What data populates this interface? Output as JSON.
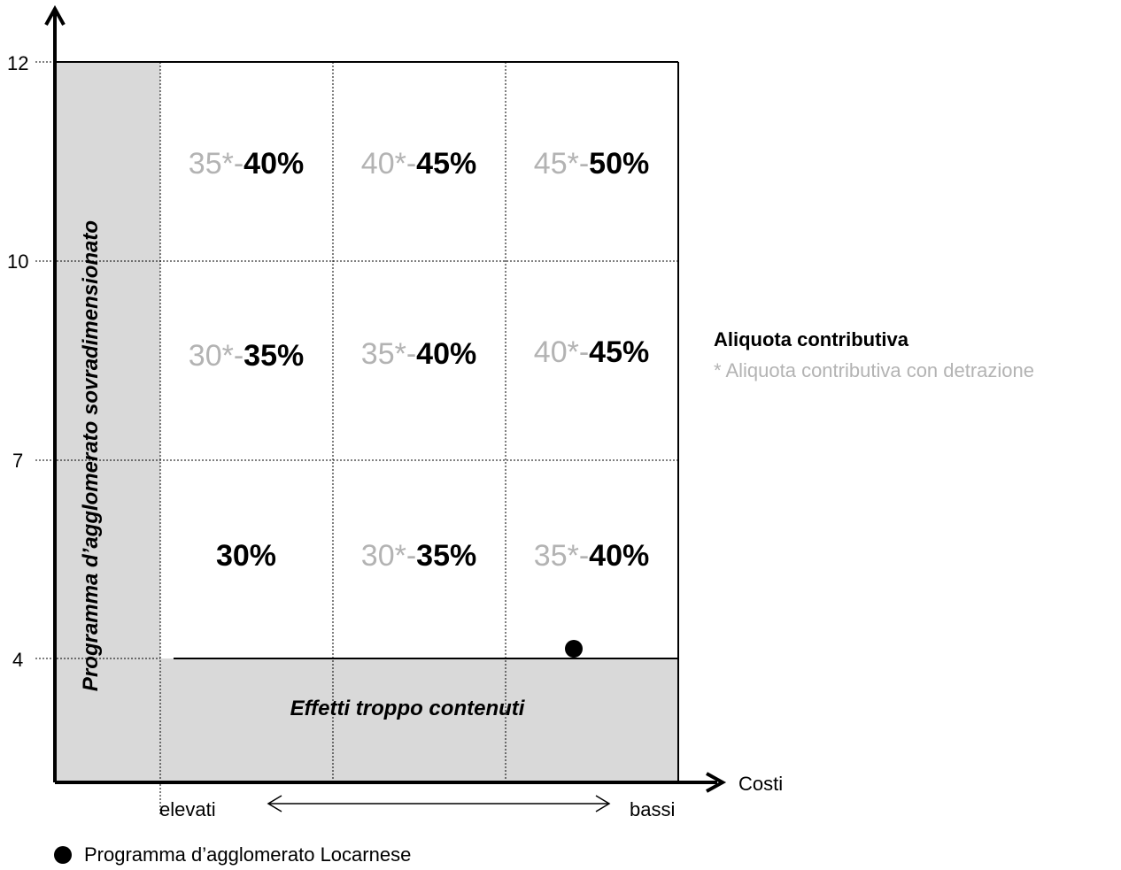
{
  "y_axis": {
    "ticks": [
      "12",
      "10",
      "7",
      "4"
    ]
  },
  "x_axis": {
    "label": "Costi",
    "left_word": "elevati",
    "right_word": "bassi"
  },
  "zones": {
    "vertical": "Programma d’agglomerato sovradimensionato",
    "horizontal": "Effetti troppo contenuti"
  },
  "cells": [
    [
      {
        "light": "35*-",
        "bold": "40%"
      },
      {
        "light": "40*-",
        "bold": "45%"
      },
      {
        "light": "45*-",
        "bold": "50%"
      }
    ],
    [
      {
        "light": "30*-",
        "bold": "35%"
      },
      {
        "light": "35*-",
        "bold": "40%"
      },
      {
        "light": "40*-",
        "bold": "45%"
      }
    ],
    [
      {
        "light": "",
        "bold": "30%"
      },
      {
        "light": "30*-",
        "bold": "35%"
      },
      {
        "light": "35*-",
        "bold": "40%"
      }
    ]
  ],
  "legend": {
    "title": "Aliquota contributiva",
    "subtitle": "* Aliquota contributiva con detrazione",
    "point_label": "Programma d’agglomerato Locarnese"
  },
  "colors": {
    "shade": "#d9d9d9",
    "light_text": "#b3b3b3",
    "ink": "#000000"
  }
}
